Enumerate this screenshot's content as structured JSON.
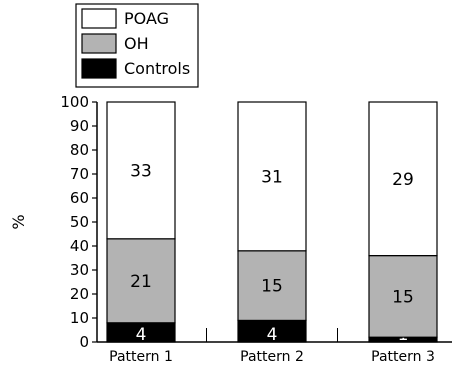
{
  "chart_data": {
    "type": "bar",
    "stacked": true,
    "categories": [
      "Pattern 1",
      "Pattern 2",
      "Pattern 3"
    ],
    "series": [
      {
        "name": "Controls",
        "color": "#000000",
        "values": [
          8,
          9,
          2
        ],
        "labels": [
          "4",
          "4",
          "1"
        ]
      },
      {
        "name": "OH",
        "color": "#b3b3b3",
        "values": [
          35,
          29,
          34
        ],
        "labels": [
          "21",
          "15",
          "15"
        ]
      },
      {
        "name": "POAG",
        "color": "#ffffff",
        "values": [
          57,
          62,
          64
        ],
        "labels": [
          "33",
          "31",
          "29"
        ]
      }
    ],
    "legend": [
      "POAG",
      "OH",
      "Controls"
    ],
    "legend_position": "top-left",
    "xlabel": "",
    "ylabel": "%",
    "ylim": [
      0,
      100
    ],
    "yticks": [
      0,
      10,
      20,
      30,
      40,
      50,
      60,
      70,
      80,
      90,
      100
    ],
    "grid": false
  }
}
